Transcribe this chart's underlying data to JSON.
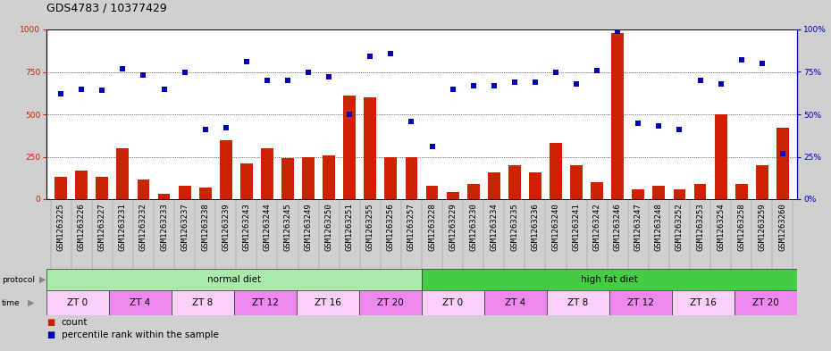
{
  "title": "GDS4783 / 10377429",
  "samples": [
    "GSM1263225",
    "GSM1263226",
    "GSM1263227",
    "GSM1263231",
    "GSM1263232",
    "GSM1263233",
    "GSM1263237",
    "GSM1263238",
    "GSM1263239",
    "GSM1263243",
    "GSM1263244",
    "GSM1263245",
    "GSM1263249",
    "GSM1263250",
    "GSM1263251",
    "GSM1263255",
    "GSM1263256",
    "GSM1263257",
    "GSM1263228",
    "GSM1263229",
    "GSM1263230",
    "GSM1263234",
    "GSM1263235",
    "GSM1263236",
    "GSM1263240",
    "GSM1263241",
    "GSM1263242",
    "GSM1263246",
    "GSM1263247",
    "GSM1263248",
    "GSM1263252",
    "GSM1263253",
    "GSM1263254",
    "GSM1263258",
    "GSM1263259",
    "GSM1263260"
  ],
  "bar_values": [
    130,
    170,
    130,
    300,
    115,
    30,
    80,
    70,
    350,
    210,
    300,
    240,
    250,
    260,
    610,
    600,
    250,
    250,
    80,
    40,
    90,
    160,
    200,
    160,
    330,
    200,
    100,
    980,
    60,
    80,
    60,
    90,
    500,
    90,
    200,
    420
  ],
  "scatter_values": [
    62,
    65,
    64,
    77,
    73,
    65,
    75,
    41,
    42,
    81,
    70,
    70,
    75,
    72,
    50,
    84,
    86,
    46,
    31,
    65,
    67,
    67,
    69,
    69,
    75,
    68,
    76,
    99,
    45,
    43,
    41,
    70,
    68,
    82,
    80,
    27
  ],
  "bar_color": "#cc2200",
  "scatter_color": "#0000bb",
  "ylim_left": [
    0,
    1000
  ],
  "ylim_right": [
    0,
    100
  ],
  "yticks_left": [
    0,
    250,
    500,
    750,
    1000
  ],
  "yticks_right": [
    0,
    25,
    50,
    75,
    100
  ],
  "protocol_groups": [
    {
      "label": "normal diet",
      "start": 0,
      "end": 18,
      "color": "#aaeaaa"
    },
    {
      "label": "high fat diet",
      "start": 18,
      "end": 36,
      "color": "#44cc44"
    }
  ],
  "time_groups": [
    {
      "label": "ZT 0",
      "start": 0,
      "end": 3,
      "color": "#f8d0f8"
    },
    {
      "label": "ZT 4",
      "start": 3,
      "end": 6,
      "color": "#ee88ee"
    },
    {
      "label": "ZT 8",
      "start": 6,
      "end": 9,
      "color": "#f8d0f8"
    },
    {
      "label": "ZT 12",
      "start": 9,
      "end": 12,
      "color": "#ee88ee"
    },
    {
      "label": "ZT 16",
      "start": 12,
      "end": 15,
      "color": "#f8d0f8"
    },
    {
      "label": "ZT 20",
      "start": 15,
      "end": 18,
      "color": "#ee88ee"
    },
    {
      "label": "ZT 0",
      "start": 18,
      "end": 21,
      "color": "#f8d0f8"
    },
    {
      "label": "ZT 4",
      "start": 21,
      "end": 24,
      "color": "#ee88ee"
    },
    {
      "label": "ZT 8",
      "start": 24,
      "end": 27,
      "color": "#f8d0f8"
    },
    {
      "label": "ZT 12",
      "start": 27,
      "end": 30,
      "color": "#ee88ee"
    },
    {
      "label": "ZT 16",
      "start": 30,
      "end": 33,
      "color": "#f8d0f8"
    },
    {
      "label": "ZT 20",
      "start": 33,
      "end": 36,
      "color": "#ee88ee"
    }
  ],
  "legend_items": [
    {
      "label": "count",
      "color": "#cc2200"
    },
    {
      "label": "percentile rank within the sample",
      "color": "#0000bb"
    }
  ],
  "fig_bg": "#d0d0d0",
  "plot_bg": "#ffffff",
  "xtick_bg": "#c0c0c0",
  "title_fontsize": 9,
  "tick_fontsize": 6.5,
  "row_fontsize": 7.5,
  "legend_fontsize": 7.5
}
